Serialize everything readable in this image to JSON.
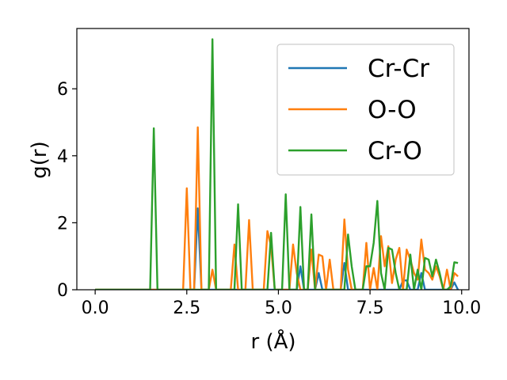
{
  "chart_data": {
    "type": "line",
    "title": "",
    "xlabel": "r (Å)",
    "ylabel": "g(r)",
    "xlim": [
      -0.5,
      10.2
    ],
    "ylim": [
      0,
      7.8
    ],
    "xticks": [
      0.0,
      2.5,
      5.0,
      7.5,
      10.0
    ],
    "xtick_labels": [
      "0.0",
      "2.5",
      "5.0",
      "7.5",
      "10.0"
    ],
    "yticks": [
      0,
      2,
      4,
      6
    ],
    "ytick_labels": [
      "0",
      "2",
      "4",
      "6"
    ],
    "grid": false,
    "legend_position": "top-right",
    "colors": {
      "Cr-Cr": "#1f77b4",
      "O-O": "#ff7f0e",
      "Cr-O": "#2ca02c"
    },
    "series": [
      {
        "name": "Cr-Cr",
        "points": [
          [
            0,
            0
          ],
          [
            2.7,
            0
          ],
          [
            2.8,
            2.43
          ],
          [
            2.9,
            0
          ],
          [
            5.5,
            0
          ],
          [
            5.6,
            0.7
          ],
          [
            5.7,
            0
          ],
          [
            6.0,
            0
          ],
          [
            6.1,
            0.5
          ],
          [
            6.2,
            0
          ],
          [
            6.7,
            0
          ],
          [
            6.8,
            0.8
          ],
          [
            6.9,
            0
          ],
          [
            8.3,
            0
          ],
          [
            8.4,
            0.28
          ],
          [
            8.5,
            0.28
          ],
          [
            8.6,
            0
          ],
          [
            8.8,
            0
          ],
          [
            8.9,
            0.5
          ],
          [
            9.0,
            0
          ],
          [
            9.7,
            0
          ],
          [
            9.8,
            0.22
          ],
          [
            9.9,
            0
          ]
        ]
      },
      {
        "name": "O-O",
        "points": [
          [
            0,
            0
          ],
          [
            2.4,
            0
          ],
          [
            2.5,
            3.03
          ],
          [
            2.6,
            0
          ],
          [
            2.7,
            0
          ],
          [
            2.8,
            4.85
          ],
          [
            2.9,
            0
          ],
          [
            3.1,
            0
          ],
          [
            3.2,
            0.6
          ],
          [
            3.3,
            0
          ],
          [
            3.7,
            0
          ],
          [
            3.8,
            1.35
          ],
          [
            3.9,
            0
          ],
          [
            4.1,
            0
          ],
          [
            4.2,
            2.08
          ],
          [
            4.3,
            0
          ],
          [
            4.6,
            0
          ],
          [
            4.7,
            1.75
          ],
          [
            4.8,
            1.3
          ],
          [
            4.9,
            0
          ],
          [
            5.3,
            0
          ],
          [
            5.4,
            1.35
          ],
          [
            5.5,
            0.5
          ],
          [
            5.6,
            0
          ],
          [
            5.8,
            0
          ],
          [
            5.9,
            1.2
          ],
          [
            6.0,
            0
          ],
          [
            6.1,
            1.05
          ],
          [
            6.2,
            1.0
          ],
          [
            6.3,
            0
          ],
          [
            6.4,
            0.9
          ],
          [
            6.5,
            0
          ],
          [
            6.7,
            0
          ],
          [
            6.8,
            2.1
          ],
          [
            6.9,
            0.6
          ],
          [
            7.0,
            0
          ],
          [
            7.3,
            0
          ],
          [
            7.4,
            1.4
          ],
          [
            7.5,
            0
          ],
          [
            7.6,
            0.65
          ],
          [
            7.7,
            0
          ],
          [
            7.8,
            1.6
          ],
          [
            7.9,
            0.7
          ],
          [
            8.0,
            1.3
          ],
          [
            8.1,
            0.2
          ],
          [
            8.2,
            0.9
          ],
          [
            8.3,
            1.25
          ],
          [
            8.4,
            0
          ],
          [
            8.5,
            1.2
          ],
          [
            8.6,
            0.9
          ],
          [
            8.7,
            0.5
          ],
          [
            8.8,
            0.3
          ],
          [
            8.9,
            1.5
          ],
          [
            9.0,
            0.6
          ],
          [
            9.1,
            0.5
          ],
          [
            9.2,
            0.3
          ],
          [
            9.3,
            0.7
          ],
          [
            9.4,
            0.4
          ],
          [
            9.5,
            0
          ],
          [
            9.6,
            0.6
          ],
          [
            9.7,
            0
          ],
          [
            9.8,
            0.5
          ],
          [
            9.9,
            0.4
          ]
        ]
      },
      {
        "name": "Cr-O",
        "points": [
          [
            0,
            0
          ],
          [
            1.5,
            0
          ],
          [
            1.6,
            4.82
          ],
          [
            1.7,
            0
          ],
          [
            3.1,
            0
          ],
          [
            3.2,
            7.48
          ],
          [
            3.3,
            0
          ],
          [
            3.8,
            0
          ],
          [
            3.9,
            2.55
          ],
          [
            4.0,
            0
          ],
          [
            4.7,
            0
          ],
          [
            4.8,
            1.7
          ],
          [
            4.9,
            0
          ],
          [
            5.1,
            0
          ],
          [
            5.2,
            2.85
          ],
          [
            5.3,
            0
          ],
          [
            5.5,
            0
          ],
          [
            5.6,
            2.47
          ],
          [
            5.7,
            0
          ],
          [
            5.8,
            0
          ],
          [
            5.9,
            2.25
          ],
          [
            6.0,
            0
          ],
          [
            6.8,
            0
          ],
          [
            6.9,
            1.65
          ],
          [
            7.0,
            0.7
          ],
          [
            7.1,
            0
          ],
          [
            7.3,
            0
          ],
          [
            7.4,
            0.7
          ],
          [
            7.5,
            0.7
          ],
          [
            7.6,
            1.4
          ],
          [
            7.7,
            2.65
          ],
          [
            7.8,
            0.5
          ],
          [
            7.9,
            0
          ],
          [
            8.0,
            1.25
          ],
          [
            8.1,
            1.2
          ],
          [
            8.2,
            0.5
          ],
          [
            8.3,
            0
          ],
          [
            8.5,
            0
          ],
          [
            8.6,
            1.05
          ],
          [
            8.7,
            0
          ],
          [
            8.8,
            0.6
          ],
          [
            8.9,
            0
          ],
          [
            9.0,
            0.95
          ],
          [
            9.1,
            0.9
          ],
          [
            9.2,
            0.4
          ],
          [
            9.3,
            0.9
          ],
          [
            9.4,
            0.5
          ],
          [
            9.5,
            0
          ],
          [
            9.6,
            0
          ],
          [
            9.7,
            0.1
          ],
          [
            9.8,
            0.82
          ],
          [
            9.9,
            0.8
          ]
        ]
      }
    ]
  }
}
